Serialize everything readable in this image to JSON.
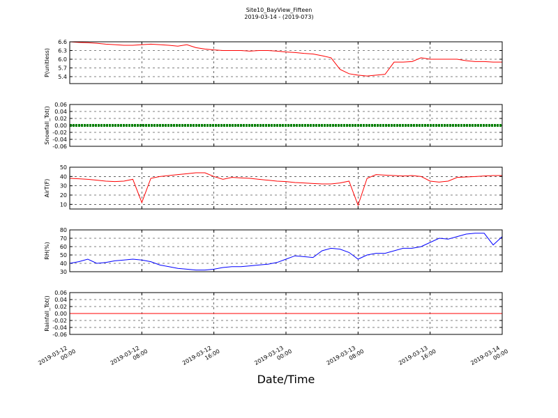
{
  "title": "Site10_BayView_Fifteen",
  "subtitle": "2019-03-14 - (2019-073)",
  "xlabel": "Date/Time",
  "x": [
    "2019-03-12 00:00",
    "2019-03-12 01:00",
    "2019-03-12 02:00",
    "2019-03-12 03:00",
    "2019-03-12 04:00",
    "2019-03-12 05:00",
    "2019-03-12 06:00",
    "2019-03-12 07:00",
    "2019-03-12 08:00",
    "2019-03-12 09:00",
    "2019-03-12 10:00",
    "2019-03-12 11:00",
    "2019-03-12 12:00",
    "2019-03-12 13:00",
    "2019-03-12 14:00",
    "2019-03-12 15:00",
    "2019-03-12 16:00",
    "2019-03-12 17:00",
    "2019-03-12 18:00",
    "2019-03-12 19:00",
    "2019-03-12 20:00",
    "2019-03-12 21:00",
    "2019-03-12 22:00",
    "2019-03-12 23:00",
    "2019-03-13 00:00",
    "2019-03-13 01:00",
    "2019-03-13 02:00",
    "2019-03-13 03:00",
    "2019-03-13 04:00",
    "2019-03-13 05:00",
    "2019-03-13 06:00",
    "2019-03-13 07:00",
    "2019-03-13 08:00",
    "2019-03-13 09:00",
    "2019-03-13 10:00",
    "2019-03-13 11:00",
    "2019-03-13 12:00",
    "2019-03-13 13:00",
    "2019-03-13 14:00",
    "2019-03-13 15:00",
    "2019-03-13 16:00",
    "2019-03-13 17:00",
    "2019-03-13 18:00",
    "2019-03-13 19:00",
    "2019-03-13 20:00",
    "2019-03-13 21:00",
    "2019-03-13 22:00",
    "2019-03-13 23:00",
    "2019-03-14 00:00"
  ],
  "xlim": [
    "2019-03-12 00:00",
    "2019-03-14 00:00"
  ],
  "xticks": [
    {
      "value": "2019-03-12 00:00",
      "label": [
        "2019-03-12",
        "00:00"
      ]
    },
    {
      "value": "2019-03-12 08:00",
      "label": [
        "2019-03-12",
        "08:00"
      ]
    },
    {
      "value": "2019-03-12 16:00",
      "label": [
        "2019-03-12",
        "16:00"
      ]
    },
    {
      "value": "2019-03-13 00:00",
      "label": [
        "2019-03-13",
        "00:00"
      ]
    },
    {
      "value": "2019-03-13 08:00",
      "label": [
        "2019-03-13",
        "08:00"
      ]
    },
    {
      "value": "2019-03-13 16:00",
      "label": [
        "2019-03-13",
        "16:00"
      ]
    },
    {
      "value": "2019-03-14 00:00",
      "label": [
        "2019-03-14",
        "00:00"
      ]
    }
  ],
  "chart_data": [
    {
      "type": "line",
      "ylabel": "P(unitless)",
      "color": "#ff0000",
      "grid": true,
      "ylim": [
        5.16,
        6.6
      ],
      "yticks": [
        5.4,
        5.7,
        {
          "value": 6,
          "label": "6.0"
        },
        6.3,
        6.6
      ],
      "values": [
        6.6,
        6.58,
        6.57,
        6.55,
        6.52,
        6.5,
        6.48,
        6.48,
        6.5,
        6.52,
        6.5,
        6.48,
        6.45,
        6.5,
        6.4,
        6.35,
        6.32,
        6.3,
        6.3,
        6.3,
        6.28,
        6.3,
        6.3,
        6.28,
        6.25,
        6.23,
        6.2,
        6.18,
        6.12,
        6.05,
        5.65,
        5.5,
        5.45,
        5.42,
        5.45,
        5.48,
        5.9,
        5.9,
        5.92,
        6.05,
        6.0,
        6.0,
        6.0,
        6.0,
        5.95,
        5.92,
        5.92,
        5.9,
        5.9
      ]
    },
    {
      "type": "dots",
      "ylabel": "Snowfall_Tot()",
      "color": "#008000",
      "grid": true,
      "ylim": [
        -0.06,
        0.06
      ],
      "yticks": [
        -0.06,
        -0.04,
        -0.02,
        {
          "value": 0,
          "label": "0.00"
        },
        0.02,
        0.04,
        0.06
      ],
      "values": [
        0,
        0,
        0,
        0,
        0,
        0,
        0,
        0,
        0,
        0,
        0,
        0,
        0,
        0,
        0,
        0,
        0,
        0,
        0,
        0,
        0,
        0,
        0,
        0,
        0,
        0,
        0,
        0,
        0,
        0,
        0,
        0,
        0,
        0,
        0,
        0,
        0,
        0,
        0,
        0,
        0,
        0,
        0,
        0,
        0,
        0,
        0,
        0,
        0
      ]
    },
    {
      "type": "line",
      "ylabel": "AirT(F)",
      "color": "#ff0000",
      "grid": true,
      "ylim": [
        5,
        50
      ],
      "yticks": [
        10,
        20,
        30,
        40,
        50
      ],
      "values": [
        38,
        37.5,
        37,
        36,
        35,
        34.5,
        35,
        37,
        12,
        38,
        40,
        41,
        42,
        43,
        44,
        44,
        40,
        37,
        39,
        38.5,
        38,
        37,
        36,
        35,
        34.5,
        33.5,
        33,
        32.5,
        32,
        32,
        33,
        35,
        9,
        38,
        42,
        41.5,
        41,
        40.5,
        41,
        40,
        35,
        34,
        35,
        39,
        39.5,
        40,
        40.5,
        41,
        41
      ]
    },
    {
      "type": "line",
      "ylabel": "RH(%)",
      "color": "#0000ff",
      "grid": true,
      "ylim": [
        30,
        80
      ],
      "yticks": [
        30,
        40,
        50,
        60,
        70,
        80
      ],
      "values": [
        40,
        42,
        45,
        40,
        41,
        43,
        44,
        45,
        44,
        42,
        38,
        36,
        34,
        33,
        32,
        32,
        33,
        35,
        36,
        36,
        37,
        38,
        39,
        41,
        45,
        49,
        48,
        47,
        55,
        58,
        57,
        53,
        45,
        50,
        52,
        52,
        55,
        58,
        58,
        60,
        65,
        70,
        69,
        72,
        75,
        76,
        76,
        62,
        72
      ]
    },
    {
      "type": "line",
      "ylabel": "Rainfall_Tot()",
      "color": "#ff0000",
      "grid": true,
      "ylim": [
        -0.06,
        0.06
      ],
      "yticks": [
        -0.06,
        -0.04,
        -0.02,
        {
          "value": 0,
          "label": "0.00"
        },
        0.02,
        0.04,
        0.06
      ],
      "values": [
        0,
        0,
        0,
        0,
        0,
        0,
        0,
        0,
        0,
        0,
        0,
        0,
        0,
        0,
        0,
        0,
        0,
        0,
        0,
        0,
        0,
        0,
        0,
        0,
        0,
        0,
        0,
        0,
        0,
        0,
        0,
        0,
        0,
        0,
        0,
        0,
        0,
        0,
        0,
        0,
        0,
        0,
        0,
        0,
        0,
        0,
        0,
        0,
        0
      ]
    }
  ]
}
